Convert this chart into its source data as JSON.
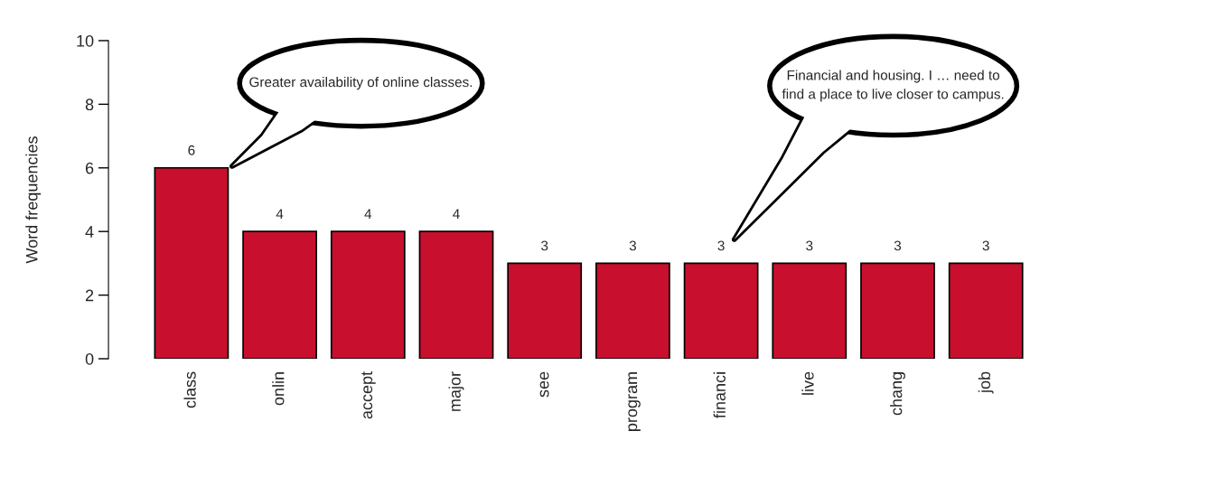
{
  "chart_data": {
    "type": "bar",
    "ylabel": "Word frequencies",
    "categories": [
      "class",
      "onlin",
      "accept",
      "major",
      "see",
      "program",
      "financi",
      "live",
      "chang",
      "job"
    ],
    "values": [
      6,
      4,
      4,
      4,
      3,
      3,
      3,
      3,
      3,
      3
    ],
    "color": "#c8102e",
    "data_labels": true,
    "ylim": [
      0,
      10
    ],
    "yticks": [
      0,
      2,
      4,
      6,
      8,
      10
    ],
    "grid": false,
    "legend": false,
    "annotations": [
      "Greater availability of online classes.",
      "Financial and housing. I … need to\nfind a place to live closer to campus."
    ]
  }
}
